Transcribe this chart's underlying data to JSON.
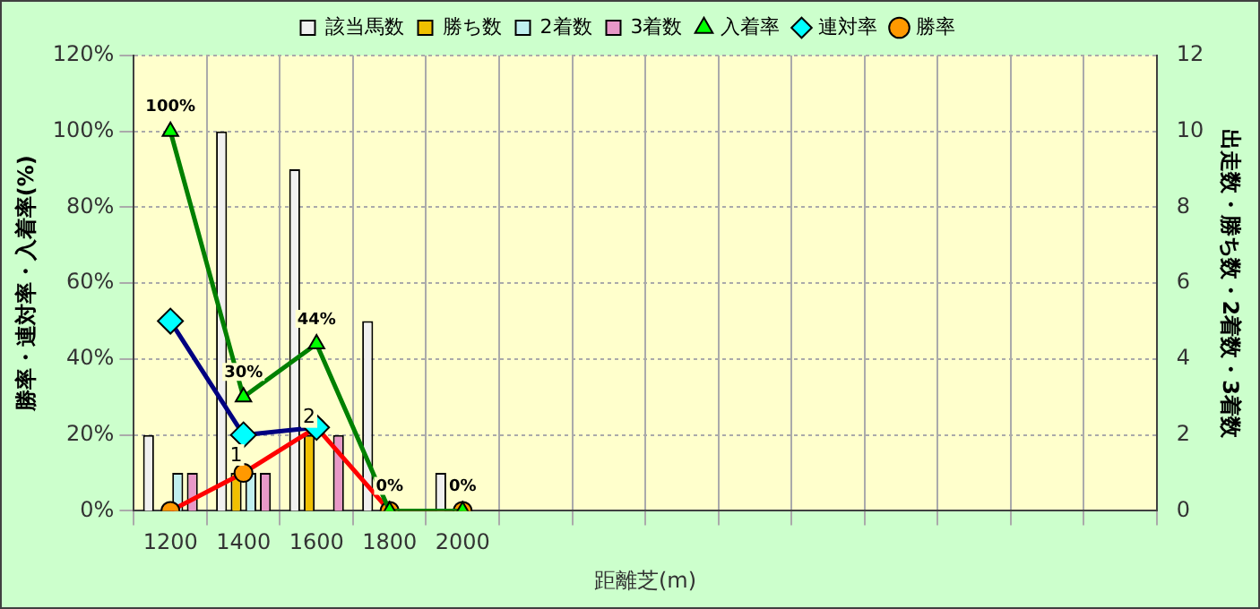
{
  "chart_data": {
    "type": "bar",
    "xlabel": "距離芝(m)",
    "ylabel": "勝率・連対率・入着率(%)",
    "y2label": "出走数・勝ち数・2着数・3着数",
    "categories": [
      "1200",
      "1400",
      "1600",
      "1800",
      "2000",
      null,
      null,
      null,
      null,
      null,
      null,
      null,
      null,
      null
    ],
    "series": [
      {
        "name": "該当馬数",
        "axis": "y2",
        "color": "#f0f0f0",
        "values": [
          2,
          10,
          9,
          5,
          1,
          null,
          null,
          null,
          null,
          null,
          null,
          null,
          null,
          null
        ]
      },
      {
        "name": "勝ち数",
        "axis": "y2",
        "color": "#f0c000",
        "values": [
          0,
          1,
          2,
          0,
          0,
          null,
          null,
          null,
          null,
          null,
          null,
          null,
          null,
          null
        ],
        "value_labels": [
          null,
          "1",
          "2",
          null,
          null,
          null,
          null,
          null,
          null,
          null,
          null,
          null,
          null,
          null
        ]
      },
      {
        "name": "2着数",
        "axis": "y2",
        "color": "#c0f0f0",
        "values": [
          1,
          1,
          0,
          0,
          0,
          null,
          null,
          null,
          null,
          null,
          null,
          null,
          null,
          null
        ]
      },
      {
        "name": "3着数",
        "axis": "y2",
        "color": "#e898c8",
        "values": [
          1,
          1,
          2,
          0,
          0,
          null,
          null,
          null,
          null,
          null,
          null,
          null,
          null,
          null
        ]
      },
      {
        "name": "入着率",
        "type": "line",
        "marker": "triangle",
        "color": "#008000",
        "values": [
          100,
          30,
          44,
          0,
          0,
          null,
          null,
          null,
          null,
          null,
          null,
          null,
          null,
          null
        ],
        "value_labels": [
          "100%",
          "30%",
          "44%",
          "0%",
          "0%",
          null,
          null,
          null,
          null,
          null,
          null,
          null,
          null,
          null
        ]
      },
      {
        "name": "連対率",
        "type": "line",
        "marker": "diamond",
        "color": "#000080",
        "values": [
          50,
          20,
          22,
          null,
          null,
          null,
          null,
          null,
          null,
          null,
          null,
          null,
          null,
          null
        ]
      },
      {
        "name": "勝率",
        "type": "line",
        "marker": "circle",
        "color": "#ff0000",
        "values": [
          0,
          10,
          22,
          0,
          0,
          null,
          null,
          null,
          null,
          null,
          null,
          null,
          null,
          null
        ]
      }
    ],
    "ylim": [
      0,
      120
    ],
    "yticks": [
      {
        "value": 0,
        "label": "0%"
      },
      {
        "value": 20,
        "label": "20%"
      },
      {
        "value": 40,
        "label": "40%"
      },
      {
        "value": 60,
        "label": "60%"
      },
      {
        "value": 80,
        "label": "80%"
      },
      {
        "value": 100,
        "label": "100%"
      },
      {
        "value": 120,
        "label": "120%"
      }
    ],
    "y2lim": [
      0,
      12
    ],
    "y2ticks": [
      0,
      2,
      4,
      6,
      8,
      10,
      12
    ],
    "grid": true,
    "legend": "top"
  }
}
